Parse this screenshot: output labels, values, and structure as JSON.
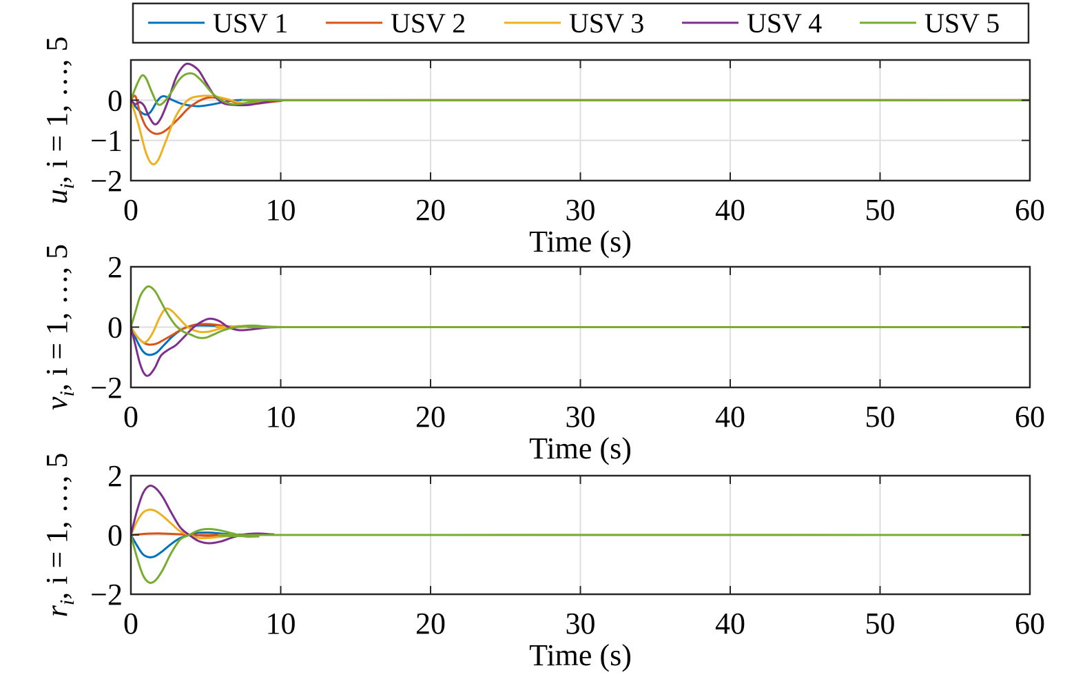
{
  "legend": [
    {
      "label": "USV 1",
      "color": "#0072BD"
    },
    {
      "label": "USV 2",
      "color": "#D95319"
    },
    {
      "label": "USV 3",
      "color": "#EDB120"
    },
    {
      "label": "USV 4",
      "color": "#7E2F8E"
    },
    {
      "label": "USV 5",
      "color": "#77AC30"
    }
  ],
  "chart_data": [
    {
      "type": "line",
      "ylabel": {
        "var": "u",
        "sub": "i",
        "rest": ", i = 1, …, 5"
      },
      "xlabel": "Time (s)",
      "xlim": [
        0,
        60
      ],
      "ylim": [
        -2,
        1
      ],
      "xticks": [
        0,
        10,
        20,
        30,
        40,
        50,
        60
      ],
      "xtick_labels": [
        "0",
        "10",
        "20",
        "30",
        "40",
        "50",
        "60"
      ],
      "yticks": [
        -2,
        -1,
        0
      ],
      "ytick_labels": [
        "−2",
        "−1",
        "0"
      ],
      "grid": true,
      "series": [
        {
          "name": "USV 1",
          "color": "#0072BD",
          "x": [
            0,
            0.4,
            0.9,
            1.3,
            1.8,
            2.2,
            2.8,
            3.5,
            4.5,
            5.5,
            7,
            9,
            12,
            60
          ],
          "y": [
            0,
            -0.2,
            -0.35,
            -0.3,
            0,
            0.1,
            0,
            -0.1,
            -0.15,
            -0.1,
            0,
            0,
            0,
            0
          ]
        },
        {
          "name": "USV 2",
          "color": "#D95319",
          "x": [
            0,
            0.3,
            0.6,
            1,
            1.5,
            2,
            2.5,
            3.2,
            4,
            5,
            6,
            7,
            8,
            10,
            12,
            60
          ],
          "y": [
            0,
            0.1,
            -0.3,
            -0.65,
            -0.82,
            -0.82,
            -0.7,
            -0.45,
            -0.15,
            0.05,
            0.05,
            -0.05,
            -0.1,
            -0.02,
            0,
            0
          ]
        },
        {
          "name": "USV 3",
          "color": "#EDB120",
          "x": [
            0,
            0.5,
            1,
            1.4,
            1.8,
            2.3,
            3,
            3.8,
            4.6,
            5.5,
            6.5,
            7.5,
            8.5,
            10,
            12,
            60
          ],
          "y": [
            0,
            -0.6,
            -1.3,
            -1.58,
            -1.5,
            -1.05,
            -0.4,
            0,
            0.1,
            0.1,
            0.02,
            -0.08,
            -0.05,
            0,
            0,
            0
          ]
        },
        {
          "name": "USV 4",
          "color": "#7E2F8E",
          "x": [
            0,
            0.3,
            0.6,
            0.9,
            1.2,
            1.6,
            2,
            2.5,
            3,
            3.5,
            3.9,
            4.5,
            5,
            5.6,
            6.2,
            7,
            7.8,
            8.5,
            10,
            12,
            60
          ],
          "y": [
            0,
            -0.1,
            -0.05,
            -0.15,
            -0.4,
            -0.6,
            -0.45,
            0,
            0.55,
            0.85,
            0.9,
            0.75,
            0.45,
            0.1,
            -0.08,
            -0.12,
            -0.12,
            -0.08,
            0,
            0,
            0
          ]
        },
        {
          "name": "USV 5",
          "color": "#77AC30",
          "x": [
            0,
            0.3,
            0.7,
            1,
            1.4,
            1.8,
            2.2,
            2.7,
            3.2,
            3.7,
            4.2,
            4.8,
            5.5,
            6.3,
            7,
            8,
            9,
            12,
            60
          ],
          "y": [
            0,
            0.3,
            0.6,
            0.55,
            0.2,
            -0.1,
            -0.05,
            0.2,
            0.5,
            0.65,
            0.65,
            0.45,
            0.15,
            -0.05,
            -0.1,
            -0.05,
            0,
            0,
            0
          ]
        }
      ]
    },
    {
      "type": "line",
      "ylabel": {
        "var": "v",
        "sub": "i",
        "rest": ", i = 1, …, 5"
      },
      "xlabel": "Time (s)",
      "xlim": [
        0,
        60
      ],
      "ylim": [
        -2,
        2
      ],
      "xticks": [
        0,
        10,
        20,
        30,
        40,
        50,
        60
      ],
      "xtick_labels": [
        "0",
        "10",
        "20",
        "30",
        "40",
        "50",
        "60"
      ],
      "yticks": [
        -2,
        0,
        2
      ],
      "ytick_labels": [
        "−2",
        "0",
        "2"
      ],
      "grid": true,
      "series": [
        {
          "name": "USV 1",
          "color": "#0072BD",
          "x": [
            0,
            0.4,
            0.8,
            1.2,
            1.7,
            2.2,
            2.8,
            3.5,
            4.3,
            5.2,
            6.5,
            8,
            10,
            60
          ],
          "y": [
            0,
            -0.45,
            -0.8,
            -0.92,
            -0.85,
            -0.6,
            -0.3,
            -0.05,
            0.05,
            0.05,
            0.02,
            0,
            0,
            0
          ]
        },
        {
          "name": "USV 2",
          "color": "#D95319",
          "x": [
            0,
            0.4,
            0.8,
            1.2,
            1.7,
            2.2,
            2.8,
            3.5,
            4.3,
            5.2,
            6.5,
            8,
            10,
            60
          ],
          "y": [
            0,
            -0.3,
            -0.5,
            -0.58,
            -0.55,
            -0.42,
            -0.25,
            -0.05,
            0.08,
            0.1,
            0.03,
            0,
            0,
            0
          ]
        },
        {
          "name": "USV 3",
          "color": "#EDB120",
          "x": [
            0,
            0.4,
            0.8,
            1.1,
            1.5,
            1.9,
            2.3,
            2.7,
            3.2,
            3.8,
            4.5,
            5.2,
            6,
            7,
            8,
            10,
            60
          ],
          "y": [
            0,
            -0.3,
            -0.5,
            -0.45,
            -0.15,
            0.3,
            0.6,
            0.55,
            0.3,
            0,
            -0.15,
            -0.15,
            -0.05,
            0.03,
            0.02,
            0,
            0
          ]
        },
        {
          "name": "USV 4",
          "color": "#7E2F8E",
          "x": [
            0,
            0.3,
            0.6,
            0.9,
            1.2,
            1.6,
            2,
            2.5,
            3,
            3.6,
            4.2,
            4.8,
            5.3,
            5.9,
            6.5,
            7.2,
            8,
            9,
            10,
            12,
            60
          ],
          "y": [
            0,
            -0.6,
            -1.2,
            -1.55,
            -1.6,
            -1.35,
            -0.95,
            -0.75,
            -0.6,
            -0.3,
            0,
            0.2,
            0.28,
            0.2,
            0,
            -0.1,
            -0.08,
            -0.02,
            0,
            0,
            0
          ]
        },
        {
          "name": "USV 5",
          "color": "#77AC30",
          "x": [
            0,
            0.3,
            0.6,
            0.9,
            1.2,
            1.6,
            2,
            2.5,
            3,
            3.5,
            4,
            4.5,
            5,
            5.5,
            6.2,
            7,
            8,
            9,
            10,
            12,
            60
          ],
          "y": [
            0,
            0.5,
            1,
            1.25,
            1.35,
            1.2,
            0.85,
            0.4,
            0.05,
            -0.15,
            -0.25,
            -0.35,
            -0.35,
            -0.25,
            -0.1,
            0,
            0.05,
            0.02,
            0,
            0,
            0
          ]
        }
      ]
    },
    {
      "type": "line",
      "ylabel": {
        "var": "r",
        "sub": "i",
        "rest": ", i = 1, …, 5"
      },
      "xlabel": "Time (s)",
      "xlim": [
        0,
        60
      ],
      "ylim": [
        -2,
        2
      ],
      "xticks": [
        0,
        10,
        20,
        30,
        40,
        50,
        60
      ],
      "xtick_labels": [
        "0",
        "10",
        "20",
        "30",
        "40",
        "50",
        "60"
      ],
      "yticks": [
        -2,
        0,
        2
      ],
      "ytick_labels": [
        "−2",
        "0",
        "2"
      ],
      "grid": true,
      "series": [
        {
          "name": "USV 1",
          "color": "#0072BD",
          "x": [
            0,
            0.4,
            0.8,
            1.2,
            1.6,
            2.1,
            2.7,
            3.3,
            3.9,
            4.5,
            5.2,
            6,
            7,
            8.5,
            10,
            60
          ],
          "y": [
            0,
            -0.35,
            -0.65,
            -0.75,
            -0.72,
            -0.55,
            -0.3,
            -0.1,
            0,
            0.07,
            0.08,
            0.05,
            0.01,
            0,
            0,
            0
          ]
        },
        {
          "name": "USV 2",
          "color": "#D95319",
          "x": [
            0,
            0.5,
            1,
            1.5,
            2,
            2.5,
            3,
            3.5,
            4,
            5,
            6,
            7,
            9,
            60
          ],
          "y": [
            0,
            0.02,
            0.04,
            0.05,
            0.05,
            0.04,
            0.03,
            0.02,
            0,
            -0.03,
            -0.03,
            -0.01,
            0,
            0
          ]
        },
        {
          "name": "USV 3",
          "color": "#EDB120",
          "x": [
            0,
            0.4,
            0.8,
            1.2,
            1.6,
            2.1,
            2.7,
            3.3,
            3.9,
            4.5,
            5.2,
            6,
            7,
            8.5,
            10,
            60
          ],
          "y": [
            0,
            0.45,
            0.75,
            0.85,
            0.82,
            0.65,
            0.38,
            0.12,
            0,
            -0.1,
            -0.1,
            -0.06,
            -0.02,
            0,
            0,
            0
          ]
        },
        {
          "name": "USV 4",
          "color": "#7E2F8E",
          "x": [
            0,
            0.4,
            0.8,
            1.2,
            1.6,
            2.1,
            2.7,
            3.3,
            3.9,
            4.5,
            5.2,
            6,
            6.8,
            7.6,
            8.5,
            9.5,
            11,
            60
          ],
          "y": [
            0,
            0.8,
            1.4,
            1.65,
            1.6,
            1.3,
            0.75,
            0.25,
            0,
            -0.2,
            -0.28,
            -0.22,
            -0.08,
            0.02,
            0.05,
            0.02,
            0,
            0
          ]
        },
        {
          "name": "USV 5",
          "color": "#77AC30",
          "x": [
            0,
            0.4,
            0.8,
            1.2,
            1.6,
            2.1,
            2.7,
            3.3,
            3.9,
            4.5,
            5.2,
            6,
            6.8,
            7.6,
            8.5,
            10,
            60
          ],
          "y": [
            0,
            -0.75,
            -1.35,
            -1.6,
            -1.55,
            -1.2,
            -0.6,
            -0.15,
            0,
            0.15,
            0.2,
            0.15,
            0.05,
            -0.05,
            -0.05,
            0,
            0
          ]
        }
      ]
    }
  ]
}
